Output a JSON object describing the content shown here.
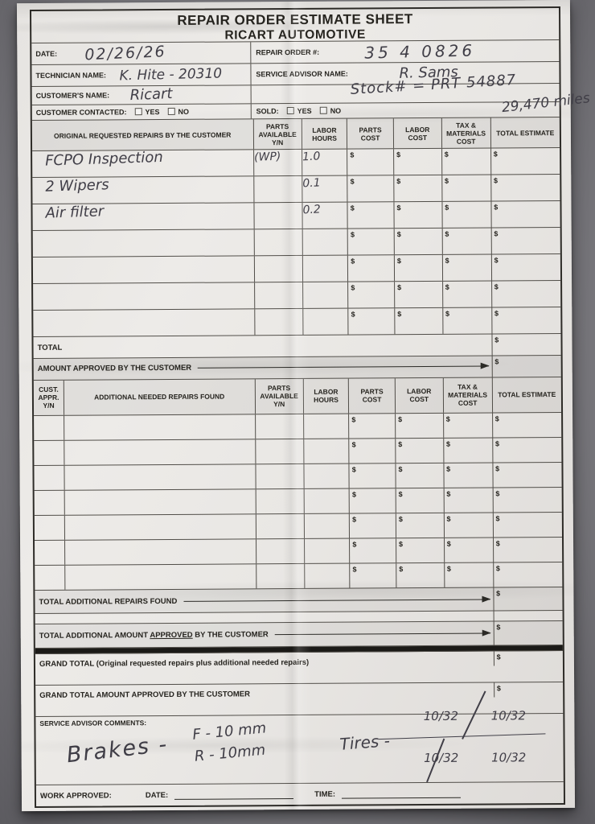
{
  "currency": "$",
  "header": {
    "title_line1": "REPAIR ORDER ESTIMATE SHEET",
    "title_line2": "RICART AUTOMOTIVE"
  },
  "info": {
    "date_label": "DATE:",
    "date_value": "02/26/26",
    "repair_order_label": "REPAIR ORDER #:",
    "repair_order_value": "35 4 0826",
    "technician_label": "TECHNICIAN NAME:",
    "technician_value": "K. Hite - 20310",
    "advisor_label": "SERVICE ADVISOR NAME:",
    "advisor_value": "R. Sams",
    "customer_label": "CUSTOMER'S NAME:",
    "customer_value": "Ricart",
    "stock_note": "Stock# = PRT 54887",
    "miles_note": "29,470 miles",
    "contacted_label": "CUSTOMER CONTACTED:",
    "sold_label": "SOLD:",
    "yes_label": "YES",
    "no_label": "NO"
  },
  "table1": {
    "headers": [
      "ORIGINAL REQUESTED REPAIRS BY THE CUSTOMER",
      "PARTS AVAILABLE Y/N",
      "LABOR HOURS",
      "PARTS COST",
      "LABOR COST",
      "TAX & MATERIALS COST",
      "TOTAL ESTIMATE"
    ],
    "rows": [
      {
        "description": "FCPO Inspection",
        "parts_available": "(WP)",
        "labor_hours": "1.0"
      },
      {
        "description": "2 Wipers",
        "parts_available": "",
        "labor_hours": "0.1"
      },
      {
        "description": "Air filter",
        "parts_available": "",
        "labor_hours": "0.2"
      },
      {
        "description": "",
        "parts_available": "",
        "labor_hours": ""
      },
      {
        "description": "",
        "parts_available": "",
        "labor_hours": ""
      },
      {
        "description": "",
        "parts_available": "",
        "labor_hours": ""
      },
      {
        "description": "",
        "parts_available": "",
        "labor_hours": ""
      }
    ],
    "total_label": "TOTAL",
    "amount_approved_label": "AMOUNT APPROVED BY THE CUSTOMER"
  },
  "table2": {
    "headers": [
      "CUST. APPR. Y/N",
      "ADDITIONAL NEEDED REPAIRS FOUND",
      "PARTS AVAILABLE Y/N",
      "LABOR HOURS",
      "PARTS COST",
      "LABOR COST",
      "TAX & MATERIALS COST",
      "TOTAL ESTIMATE"
    ],
    "empty_rows": 7,
    "total_additional_label": "TOTAL ADDITIONAL REPAIRS FOUND",
    "approved_prefix": "TOTAL ADDITIONAL AMOUNT ",
    "approved_underlined": "APPROVED",
    "approved_suffix": " BY THE CUSTOMER"
  },
  "totals": {
    "grand_total_label": "GRAND TOTAL (Original requested repairs plus additional needed repairs)",
    "grand_total_approved_label": "GRAND TOTAL AMOUNT APPROVED BY THE CUSTOMER"
  },
  "comments": {
    "label": "SERVICE ADVISOR COMMENTS:",
    "brakes": "Brakes -",
    "front_value": "F - 10 mm",
    "rear_value": "R - 10mm",
    "tires": "Tires -",
    "tire_front_left": "10/32",
    "tire_front_right": "10/32",
    "tire_rear_left": "10/32",
    "tire_rear_right": "10/32"
  },
  "footer": {
    "work_approved_label": "WORK APPROVED:",
    "date_label": "DATE:",
    "time_label": "TIME:"
  }
}
